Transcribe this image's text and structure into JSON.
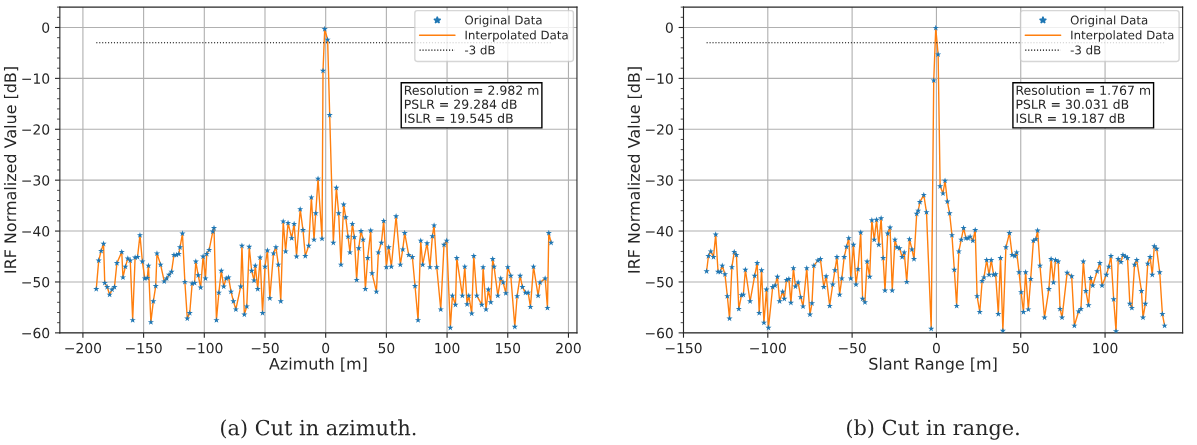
{
  "chart_data": [
    {
      "type": "scatter",
      "xlabel": "Azimuth [m]",
      "ylabel": "IRF Normalized Value [dB]",
      "xlim": [
        -219,
        207
      ],
      "xticks": [
        {
          "value": -200,
          "label": "−200"
        },
        {
          "value": -150,
          "label": "−150"
        },
        {
          "value": -100,
          "label": "−100"
        },
        {
          "value": -50,
          "label": "−50"
        },
        0,
        50,
        100,
        150,
        200
      ],
      "ylim": [
        -60,
        4
      ],
      "yticks": [
        {
          "value": -60,
          "label": "−60"
        },
        {
          "value": -50,
          "label": "−50"
        },
        {
          "value": -40,
          "label": "−40"
        },
        {
          "value": -30,
          "label": "−30"
        },
        {
          "value": -20,
          "label": "−20"
        },
        {
          "value": -10,
          "label": "−10"
        },
        0
      ],
      "grid": true,
      "legend": "top right",
      "annotations": [
        "Resolution = 2.982 m\nPSLR = 29.284 dB\nISLR = 19.545 dB",
        "(a) Cut in azimuth."
      ],
      "ref_lines": [
        {
          "axis": "y",
          "value": -3,
          "label": "-3 dB",
          "color": "#000000",
          "line_style": "dotted"
        }
      ],
      "x": [
        -189,
        -187,
        -185,
        -183,
        -182,
        -180,
        -178,
        -176,
        -174,
        -172,
        -168,
        -167,
        -165,
        -163,
        -161,
        -159,
        -157,
        -155,
        -153,
        -151,
        -149,
        -147,
        -146,
        -144,
        -142,
        -140,
        -139,
        -136,
        -133,
        -131,
        -129,
        -127,
        -125,
        -123,
        -121,
        -120,
        -118,
        -116,
        -114,
        -112,
        -110,
        -108,
        -107,
        -105,
        -103,
        -101,
        -99,
        -98,
        -96,
        -93,
        -92,
        -90,
        -88,
        -86,
        -84,
        -82,
        -80,
        -78,
        -76,
        -74,
        -70,
        -69,
        -67,
        -65,
        -63,
        -61,
        -59,
        -58,
        -56,
        -54,
        -52,
        -50,
        -48,
        -46,
        -43,
        -41,
        -39,
        -37,
        -35,
        -33,
        -31,
        -28,
        -26,
        -24,
        -21,
        -18.7,
        -16.8,
        -14,
        -11.8,
        -9.6,
        -8.2,
        -6.3,
        -3,
        -2.2,
        -0.8,
        1.6,
        3.3,
        6.3,
        8.8,
        10.7,
        12.6,
        14.8,
        16.5,
        18.4,
        20,
        22,
        23.6,
        25.5,
        27.2,
        29.1,
        30.8,
        32.7,
        34.6,
        37.1,
        38.2,
        41.8,
        43.4,
        45.9,
        47.8,
        50,
        51.9,
        54.1,
        58,
        61.5,
        63.5,
        65.1,
        68.4,
        71.4,
        73.6,
        76.1,
        78.3,
        79.9,
        83.5,
        85.9,
        87.9,
        89.3,
        91.5,
        94.8,
        97.5,
        99.7,
        102.7,
        104.4,
        106.9,
        108,
        112.6,
        114.6,
        116.5,
        117.9,
        120.3,
        122,
        124.5,
        128.6,
        129.7,
        132.1,
        134,
        136,
        137.6,
        138.7,
        141.8,
        144.2,
        146.2,
        148.4,
        150,
        152.5,
        155.8,
        157.7,
        160.2,
        162.1,
        164.6,
        166.8,
        168.7,
        171.2,
        175,
        176.6,
        180.8,
        182.7,
        183.8,
        185.7
      ],
      "series": [
        {
          "name": "Original Data",
          "type": "scatter",
          "marker": "star",
          "color": "#1f77b4",
          "values": [
            -51.4,
            -45.8,
            -43.9,
            -42.5,
            -50.2,
            -51,
            -52.5,
            -51.5,
            -51,
            -46.3,
            -44.1,
            -49.1,
            -47,
            -45.4,
            -45.8,
            -57.5,
            -45.2,
            -45.1,
            -40.8,
            -46,
            -49.3,
            -49.2,
            -46.8,
            -57.9,
            -53.8,
            -50.8,
            -44.4,
            -46.6,
            -49.9,
            -49.3,
            -48.6,
            -48,
            -44.7,
            -44.7,
            -44.5,
            -43.2,
            -40.5,
            -50,
            -57.2,
            -56.1,
            -50.3,
            -50.2,
            -46,
            -48.7,
            -51.1,
            -45,
            -49.3,
            -44.5,
            -43.7,
            -40.1,
            -39.4,
            -57.5,
            -52.1,
            -47.8,
            -50.9,
            -49.3,
            -49.1,
            -51.9,
            -53.8,
            -55.4,
            -50.9,
            -42.9,
            -56.4,
            -54.8,
            -43.1,
            -47.8,
            -49.7,
            -46.8,
            -51.4,
            -45.2,
            -56.1,
            -47,
            -43.8,
            -53.2,
            -44.4,
            -43.2,
            -46.6,
            -53.8,
            -38.1,
            -44,
            -38.4,
            -41.4,
            -38.6,
            -45,
            -35.7,
            -39.8,
            -44.9,
            -42.9,
            -33.4,
            -41.7,
            -36.5,
            -29.7,
            -41.5,
            -8.5,
            -0.3,
            -2.4,
            -17.2,
            -42.3,
            -31.5,
            -36.5,
            -46.6,
            -34.8,
            -37.3,
            -41.1,
            -44.2,
            -38.6,
            -41.2,
            -49.6,
            -43.4,
            -40,
            -41.7,
            -51.4,
            -45.3,
            -39.9,
            -48.3,
            -51.9,
            -44.2,
            -42.3,
            -38,
            -47.1,
            -43.2,
            -47,
            -37.1,
            -46.6,
            -43.6,
            -40.4,
            -44.7,
            -45.1,
            -50.8,
            -57.5,
            -41.9,
            -46.6,
            -42.4,
            -47.1,
            -41,
            -38.9,
            -47.1,
            -55.4,
            -42.7,
            -41.9,
            -59,
            -52.7,
            -54.5,
            -45.3,
            -52.7,
            -47,
            -54.4,
            -52.7,
            -56.2,
            -44.9,
            -52.7,
            -54.5,
            -47.1,
            -55.4,
            -51.5,
            -54,
            -45.5,
            -47,
            -52.7,
            -49.3,
            -50.1,
            -52.2,
            -47.1,
            -48.8,
            -58.8,
            -52.8,
            -48.8,
            -51,
            -52.1,
            -52.1,
            -54.9,
            -47,
            -52.7,
            -50.1,
            -49.3,
            -55.1,
            -40.4,
            -42.3
          ]
        },
        {
          "name": "Interpolated Data",
          "type": "line",
          "color": "#ff7f0e",
          "values": [
            -51.4,
            -45.8,
            -43.9,
            -42.5,
            -50.2,
            -51,
            -52.5,
            -51.5,
            -51,
            -46.3,
            -44.1,
            -49.1,
            -47,
            -45.4,
            -45.8,
            -57.5,
            -45.2,
            -45.1,
            -40.8,
            -46,
            -49.3,
            -49.2,
            -46.8,
            -57.9,
            -53.8,
            -50.8,
            -44.4,
            -46.6,
            -49.9,
            -49.3,
            -48.6,
            -48,
            -44.7,
            -44.7,
            -44.5,
            -43.2,
            -40.5,
            -50,
            -57.2,
            -56.1,
            -50.3,
            -50.2,
            -46,
            -48.7,
            -51.1,
            -45,
            -49.3,
            -44.5,
            -43.7,
            -40.1,
            -39.4,
            -57.5,
            -52.1,
            -47.8,
            -50.9,
            -49.3,
            -49.1,
            -51.9,
            -53.8,
            -55.4,
            -50.9,
            -42.9,
            -56.4,
            -54.8,
            -43.1,
            -47.8,
            -49.7,
            -46.8,
            -51.4,
            -45.2,
            -56.1,
            -47,
            -43.8,
            -53.2,
            -44.4,
            -43.2,
            -46.6,
            -53.8,
            -38.1,
            -44,
            -38.4,
            -41.4,
            -38.6,
            -45,
            -35.7,
            -39.8,
            -44.9,
            -42.9,
            -33.4,
            -41.7,
            -36.5,
            -29.7,
            -41.5,
            -8.5,
            -0.3,
            -2.4,
            -17.2,
            -42.3,
            -31.5,
            -36.5,
            -46.6,
            -34.8,
            -37.3,
            -41.1,
            -44.2,
            -38.6,
            -41.2,
            -49.6,
            -43.4,
            -40,
            -41.7,
            -51.4,
            -45.3,
            -39.9,
            -48.3,
            -51.9,
            -44.2,
            -42.3,
            -38,
            -47.1,
            -43.2,
            -47,
            -37.1,
            -46.6,
            -43.6,
            -40.4,
            -44.7,
            -45.1,
            -50.8,
            -57.5,
            -41.9,
            -46.6,
            -42.4,
            -47.1,
            -41,
            -38.9,
            -47.1,
            -55.4,
            -42.7,
            -41.9,
            -59,
            -52.7,
            -54.5,
            -45.3,
            -52.7,
            -47,
            -54.4,
            -52.7,
            -56.2,
            -44.9,
            -52.7,
            -54.5,
            -47.1,
            -55.4,
            -51.5,
            -54,
            -45.5,
            -47,
            -52.7,
            -49.3,
            -50.1,
            -52.2,
            -47.1,
            -48.8,
            -58.8,
            -52.8,
            -48.8,
            -51,
            -52.1,
            -52.1,
            -54.9,
            -47,
            -52.7,
            -50.1,
            -49.3,
            -55.1,
            -40.4,
            -42.3
          ]
        }
      ]
    },
    {
      "type": "scatter",
      "xlabel": "Slant Range [m]",
      "ylabel": "IRF Normalized Value [dB]",
      "xlim": [
        -150,
        146
      ],
      "xticks": [
        {
          "value": -150,
          "label": "−150"
        },
        {
          "value": -100,
          "label": "−100"
        },
        {
          "value": -50,
          "label": "−50"
        },
        0,
        50,
        100
      ],
      "ylim": [
        -60,
        4
      ],
      "yticks": [
        {
          "value": -60,
          "label": "−60"
        },
        {
          "value": -50,
          "label": "−50"
        },
        {
          "value": -40,
          "label": "−40"
        },
        {
          "value": -30,
          "label": "−30"
        },
        {
          "value": -20,
          "label": "−20"
        },
        {
          "value": -10,
          "label": "−10"
        },
        0
      ],
      "grid": true,
      "legend": "top right",
      "annotations": [
        "Resolution = 1.767 m\nPSLR = 30.031 dB\nISLR = 19.187 dB",
        "(b) Cut in range."
      ],
      "ref_lines": [
        {
          "axis": "y",
          "value": -3,
          "label": "-3 dB",
          "color": "#000000",
          "line_style": "dotted"
        }
      ],
      "x": [
        -136.3,
        -135.2,
        -133.8,
        -132.2,
        -130.9,
        -129.5,
        -128.1,
        -127,
        -125.4,
        -124,
        -122.7,
        -121.3,
        -119.9,
        -118.6,
        -117.2,
        -115.6,
        -114.5,
        -113.3,
        -110.5,
        -107.8,
        -106.3,
        -105.1,
        -103.7,
        -102.3,
        -100.8,
        -99.6,
        -97.1,
        -95.7,
        -94.3,
        -93,
        -91.2,
        -90.2,
        -88.9,
        -87.5,
        -86.3,
        -84.8,
        -83.6,
        -82,
        -80.5,
        -79.1,
        -76.9,
        -75,
        -73.8,
        -72.7,
        -70.3,
        -68.8,
        -66.8,
        -65.4,
        -63.3,
        -61.5,
        -60.2,
        -59,
        -57.4,
        -56.1,
        -54.7,
        -53.3,
        -52,
        -50.8,
        -49.2,
        -47.7,
        -46.5,
        -44.9,
        -43.8,
        -42.4,
        -41.1,
        -39.6,
        -38.3,
        -36.9,
        -35.5,
        -34.2,
        -32.8,
        -31.6,
        -30.5,
        -28.9,
        -27.5,
        -26.2,
        -24.6,
        -23.4,
        -21.9,
        -20.3,
        -19.1,
        -17.6,
        -16,
        -14.5,
        -13.3,
        -11.7,
        -10.8,
        -9.8,
        -7.5,
        -5.9,
        -3.1,
        -1.6,
        -0.4,
        1,
        2.2,
        3.9,
        5.1,
        6.5,
        7.8,
        9.2,
        10.6,
        12,
        13.3,
        14.7,
        16.1,
        17.5,
        18.8,
        20,
        21.6,
        23,
        24.1,
        25.7,
        27.1,
        28.2,
        29.8,
        31.2,
        32.5,
        33.9,
        35.1,
        36.7,
        38,
        39.4,
        41.2,
        43.3,
        44.9,
        46.5,
        47.6,
        49,
        50.2,
        51.6,
        52.9,
        54.5,
        55.9,
        57.5,
        59,
        60,
        61.4,
        64.1,
        66.7,
        68,
        69.4,
        70.6,
        72.2,
        73.3,
        74.5,
        77.5,
        80.2,
        81.8,
        84.3,
        85.7,
        87.1,
        88.6,
        90.2,
        91.4,
        92.7,
        95.3,
        96.9,
        98.2,
        100.8,
        102.2,
        103.5,
        105.1,
        106.5,
        107.8,
        109.4,
        110.6,
        112,
        113.3,
        114.7,
        115.9,
        117.5,
        118.8,
        121.6,
        122.5,
        123.9,
        125.3,
        126.7,
        128,
        129.2,
        130.6,
        132.4,
        134,
        135.3
      ],
      "series": [
        {
          "name": "Original Data",
          "type": "scatter",
          "marker": "star",
          "color": "#1f77b4",
          "values": [
            -47.9,
            -44.9,
            -44,
            -45.1,
            -40.7,
            -48,
            -48,
            -46.8,
            -48.5,
            -52.8,
            -57.2,
            -47.1,
            -44.1,
            -44.7,
            -55.3,
            -52.6,
            -52.5,
            -47.6,
            -53.8,
            -48.8,
            -46.3,
            -56.1,
            -47.7,
            -58,
            -51.5,
            -59,
            -51,
            -50.7,
            -49,
            -53.8,
            -51.9,
            -53.3,
            -49.6,
            -49.4,
            -54.1,
            -47.3,
            -50.9,
            -50.1,
            -53,
            -54.8,
            -47.3,
            -56.4,
            -54.2,
            -46.8,
            -45.8,
            -45.5,
            -51,
            -48.9,
            -54.7,
            -50.5,
            -47.7,
            -45.1,
            -52.5,
            -49.3,
            -45.1,
            -43.1,
            -41.4,
            -49.3,
            -42.7,
            -50.5,
            -47.5,
            -40.3,
            -53.3,
            -54,
            -46,
            -49,
            -37.9,
            -41.7,
            -37.8,
            -42.7,
            -37.5,
            -45.3,
            -51.7,
            -40.5,
            -39.3,
            -51.7,
            -41.7,
            -43.2,
            -43.4,
            -45.1,
            -44.2,
            -50,
            -41.6,
            -43.6,
            -45.5,
            -36.6,
            -36,
            -34.3,
            -32.9,
            -36.3,
            -59.2,
            -10.4,
            -0.1,
            -5.3,
            -31.2,
            -32.6,
            -30.1,
            -34.2,
            -36.5,
            -40.8,
            -47.6,
            -54.7,
            -44,
            -41.7,
            -39.4,
            -41.4,
            -41.4,
            -41.1,
            -41.9,
            -39.8,
            -52.8,
            -55.9,
            -49.8,
            -49.1,
            -45.7,
            -48.6,
            -45.7,
            -48.6,
            -48.5,
            -56.3,
            -45.3,
            -59.6,
            -43.2,
            -40.4,
            -44.7,
            -44.9,
            -44.2,
            -48.1,
            -52,
            -55.9,
            -48.1,
            -55.4,
            -49.4,
            -41.9,
            -41.6,
            -39.9,
            -46.8,
            -57,
            -51.4,
            -45.5,
            -50.1,
            -45.7,
            -46,
            -55.3,
            -57,
            -48.2,
            -48.9,
            -58.6,
            -55.8,
            -55.3,
            -46,
            -51.8,
            -54.6,
            -49.2,
            -50.7,
            -47.9,
            -46.3,
            -50.7,
            -48.6,
            -47,
            -44.9,
            -53.4,
            -59.7,
            -45.5,
            -46.1,
            -44.7,
            -45,
            -45.3,
            -54.3,
            -55.1,
            -46.6,
            -45.7,
            -51.8,
            -57,
            -54.3,
            -46.4,
            -45.1,
            -48.6,
            -43,
            -43.5,
            -48.1,
            -56.3,
            -58.6
          ]
        },
        {
          "name": "Interpolated Data",
          "type": "line",
          "color": "#ff7f0e",
          "values": [
            -47.9,
            -44.9,
            -44,
            -45.1,
            -40.7,
            -48,
            -48,
            -46.8,
            -48.5,
            -52.8,
            -57.2,
            -47.1,
            -44.1,
            -44.7,
            -55.3,
            -52.6,
            -52.5,
            -47.6,
            -53.8,
            -48.8,
            -46.3,
            -56.1,
            -47.7,
            -58,
            -51.5,
            -59,
            -51,
            -50.7,
            -49,
            -53.8,
            -51.9,
            -53.3,
            -49.6,
            -49.4,
            -54.1,
            -47.3,
            -50.9,
            -50.1,
            -53,
            -54.8,
            -47.3,
            -56.4,
            -54.2,
            -46.8,
            -45.8,
            -45.5,
            -51,
            -48.9,
            -54.7,
            -50.5,
            -47.7,
            -45.1,
            -52.5,
            -49.3,
            -45.1,
            -43.1,
            -41.4,
            -49.3,
            -42.7,
            -50.5,
            -47.5,
            -40.3,
            -53.3,
            -54,
            -46,
            -49,
            -37.9,
            -41.7,
            -37.8,
            -42.7,
            -37.5,
            -45.3,
            -51.7,
            -40.5,
            -39.3,
            -51.7,
            -41.7,
            -43.2,
            -43.4,
            -45.1,
            -44.2,
            -50,
            -41.6,
            -43.6,
            -45.5,
            -36.6,
            -36,
            -34.3,
            -32.9,
            -36.3,
            -59.2,
            -10.4,
            -0.1,
            -5.3,
            -31.2,
            -32.6,
            -30.1,
            -34.2,
            -36.5,
            -40.8,
            -47.6,
            -54.7,
            -44,
            -41.7,
            -39.4,
            -41.4,
            -41.4,
            -41.1,
            -41.9,
            -39.8,
            -52.8,
            -55.9,
            -49.8,
            -49.1,
            -45.7,
            -48.6,
            -45.7,
            -48.6,
            -48.5,
            -56.3,
            -45.3,
            -59.6,
            -43.2,
            -40.4,
            -44.7,
            -44.9,
            -44.2,
            -48.1,
            -52,
            -55.9,
            -48.1,
            -55.4,
            -49.4,
            -41.9,
            -41.6,
            -39.9,
            -46.8,
            -57,
            -51.4,
            -45.5,
            -50.1,
            -45.7,
            -46,
            -55.3,
            -57,
            -48.2,
            -48.9,
            -58.6,
            -55.8,
            -55.3,
            -46,
            -51.8,
            -54.6,
            -49.2,
            -50.7,
            -47.9,
            -46.3,
            -50.7,
            -48.6,
            -47,
            -44.9,
            -53.4,
            -59.7,
            -45.5,
            -46.1,
            -44.7,
            -45,
            -45.3,
            -54.3,
            -55.1,
            -46.6,
            -45.7,
            -51.8,
            -57,
            -54.3,
            -46.4,
            -45.1,
            -48.6,
            -43,
            -43.5,
            -48.1,
            -56.3,
            -58.6
          ]
        }
      ]
    }
  ]
}
